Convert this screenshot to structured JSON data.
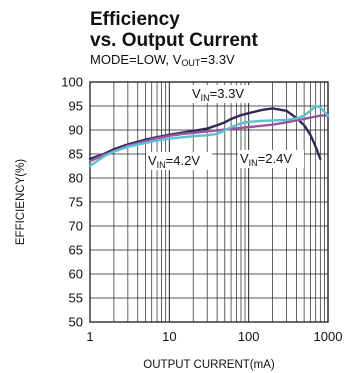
{
  "chart_data": {
    "type": "line",
    "title_line1": "Efficiency",
    "title_line2": "vs. Output Current",
    "subtitle": {
      "prefix": "MODE=LOW, V",
      "sub": "OUT",
      "suffix": "=3.3V"
    },
    "xlabel": "OUTPUT CURRENT(mA)",
    "ylabel": "EFFICIENCY(%)",
    "x_scale": "log",
    "xlim": [
      1,
      1000
    ],
    "ylim": [
      50,
      100
    ],
    "x_ticks": [
      1,
      10,
      100,
      1000
    ],
    "x_tick_labels": [
      "1",
      "10",
      "100",
      "1000"
    ],
    "y_ticks": [
      50,
      55,
      60,
      65,
      70,
      75,
      80,
      85,
      90,
      95,
      100
    ],
    "grid": true,
    "series": [
      {
        "name": "VIN=3.3V",
        "label": {
          "prefix": "V",
          "sub": "IN",
          "suffix": "=3.3V"
        },
        "color": "#2b2a5a",
        "x": [
          1,
          1.5,
          2,
          3,
          5,
          7,
          10,
          15,
          20,
          30,
          40,
          50,
          60,
          80,
          100,
          150,
          200,
          300,
          400,
          500,
          600,
          700,
          800
        ],
        "y": [
          84,
          85,
          86,
          87,
          88,
          88.5,
          89,
          89.5,
          89.8,
          90.3,
          91,
          91.6,
          92.3,
          93.1,
          93.5,
          94.2,
          94.5,
          94,
          92.5,
          91,
          89,
          86.5,
          84
        ]
      },
      {
        "name": "VIN=4.2V",
        "label": {
          "prefix": "V",
          "sub": "IN",
          "suffix": "=4.2V"
        },
        "color": "#9a55a0",
        "x": [
          1,
          1.5,
          2,
          3,
          5,
          7,
          10,
          15,
          20,
          30,
          50,
          100,
          200,
          300,
          400,
          500,
          600,
          700,
          800,
          1000
        ],
        "y": [
          83.5,
          84.8,
          85.6,
          86.7,
          87.7,
          88.3,
          88.8,
          89.2,
          89.4,
          89.7,
          90.1,
          90.6,
          91.1,
          91.6,
          92,
          92.3,
          92.6,
          92.8,
          93,
          93
        ]
      },
      {
        "name": "VIN=2.4V",
        "label": {
          "prefix": "V",
          "sub": "IN",
          "suffix": "=2.4V"
        },
        "color": "#5bc0cf",
        "x": [
          1,
          1.5,
          2,
          3,
          5,
          7,
          10,
          15,
          20,
          30,
          40,
          50,
          60,
          80,
          100,
          150,
          200,
          300,
          400,
          500,
          600,
          700,
          800,
          1000
        ],
        "y": [
          82.5,
          84.5,
          85.5,
          86.5,
          87.3,
          87.8,
          88.2,
          88.5,
          88.7,
          88.9,
          89.2,
          89.9,
          90.6,
          91.4,
          91.7,
          91.9,
          92,
          92.1,
          92.4,
          93,
          94,
          95,
          94.7,
          93
        ]
      }
    ]
  }
}
